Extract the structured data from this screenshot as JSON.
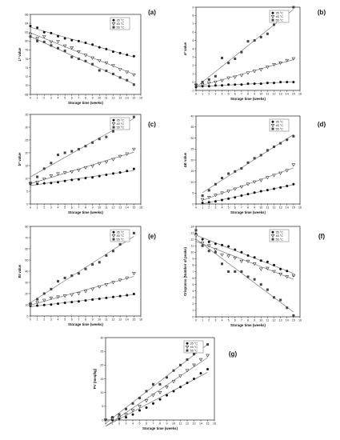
{
  "legend_labels": [
    "35 °C",
    "45 °C",
    "55 °C"
  ],
  "chart_data": [
    {
      "type": "scatter",
      "panel_label": "(a)",
      "xlabel": "Storage time (weeks)",
      "ylabel": "L* value",
      "xlim": [
        0,
        16
      ],
      "ylim": [
        68,
        86
      ],
      "xticks": [
        0,
        1,
        2,
        3,
        4,
        5,
        6,
        7,
        8,
        9,
        10,
        11,
        12,
        13,
        14,
        15,
        16
      ],
      "yticks": [
        68,
        70,
        72,
        74,
        76,
        78,
        80,
        82,
        84,
        86
      ],
      "x": [
        0,
        1,
        2,
        3,
        4,
        5,
        6,
        7,
        8,
        9,
        10,
        11,
        12,
        13,
        14,
        15
      ],
      "series": [
        {
          "name": "35 °C",
          "values": [
            83.4,
            83.0,
            82.0,
            81.8,
            81.1,
            80.6,
            80.2,
            80.0,
            79.6,
            79.2,
            78.6,
            78.2,
            77.6,
            77.3,
            76.9,
            76.6
          ]
        },
        {
          "name": "45 °C",
          "values": [
            81.5,
            80.6,
            81.0,
            79.8,
            79.9,
            78.9,
            78.5,
            77.6,
            76.8,
            76.2,
            75.6,
            75.1,
            74.5,
            73.6,
            73.0,
            72.4
          ]
        },
        {
          "name": "55 °C",
          "values": [
            81.0,
            80.0,
            79.8,
            79.0,
            78.4,
            77.8,
            76.4,
            76.0,
            75.5,
            74.8,
            73.4,
            73.3,
            72.6,
            71.8,
            71.2,
            70.2
          ]
        }
      ]
    },
    {
      "type": "scatter",
      "panel_label": "(b)",
      "xlabel": "Storage time (weeks)",
      "ylabel": "a* value",
      "xlim": [
        0,
        16
      ],
      "ylim": [
        -1,
        9
      ],
      "xticks": [
        0,
        1,
        2,
        3,
        4,
        5,
        6,
        7,
        8,
        9,
        10,
        11,
        12,
        13,
        14,
        15,
        16
      ],
      "yticks": [
        -1,
        0,
        1,
        2,
        3,
        4,
        5,
        6,
        7,
        8,
        9
      ],
      "x": [
        0,
        1,
        2,
        3,
        4,
        5,
        6,
        7,
        8,
        9,
        10,
        11,
        12,
        13,
        14,
        15
      ],
      "series": [
        {
          "name": "35 °C",
          "values": [
            -0.6,
            -0.5,
            -0.5,
            -0.4,
            -0.4,
            -0.3,
            -0.3,
            -0.3,
            -0.2,
            -0.2,
            -0.2,
            -0.1,
            -0.1,
            0.0,
            0.0,
            0.0
          ]
        },
        {
          "name": "45 °C",
          "values": [
            -0.4,
            -0.3,
            -0.1,
            0.0,
            0.2,
            0.5,
            0.6,
            0.8,
            1.1,
            1.3,
            1.5,
            1.8,
            2.1,
            2.3,
            2.6,
            2.8
          ]
        },
        {
          "name": "55 °C",
          "values": [
            -0.3,
            0.0,
            0.3,
            0.7,
            2.9,
            2.3,
            2.8,
            3.6,
            4.9,
            5.0,
            5.4,
            5.8,
            6.9,
            7.6,
            8.1,
            9.0
          ]
        }
      ]
    },
    {
      "type": "scatter",
      "panel_label": "(c)",
      "xlabel": "Storage time (weeks)",
      "ylabel": "b* value",
      "xlim": [
        0,
        16
      ],
      "ylim": [
        0,
        35
      ],
      "xticks": [
        0,
        1,
        2,
        3,
        4,
        5,
        6,
        7,
        8,
        9,
        10,
        11,
        12,
        13,
        14,
        15,
        16
      ],
      "yticks": [
        0,
        5,
        10,
        15,
        20,
        25,
        30,
        35
      ],
      "x": [
        0,
        1,
        2,
        3,
        4,
        5,
        6,
        7,
        8,
        9,
        10,
        11,
        12,
        13,
        14,
        15
      ],
      "series": [
        {
          "name": "35 °C",
          "values": [
            7.8,
            7.9,
            8.1,
            8.2,
            8.5,
            9.0,
            9.4,
            9.6,
            10.1,
            10.4,
            10.9,
            11.4,
            11.9,
            12.3,
            12.9,
            13.7
          ]
        },
        {
          "name": "45 °C",
          "values": [
            8.0,
            8.5,
            9.8,
            11.0,
            11.8,
            12.2,
            12.6,
            13.2,
            14.2,
            14.8,
            15.8,
            16.4,
            17.4,
            18.6,
            19.6,
            21.4
          ]
        },
        {
          "name": "55 °C",
          "values": [
            8.2,
            10.6,
            13.8,
            16.0,
            19.2,
            20.0,
            20.6,
            21.4,
            22.6,
            24.0,
            25.4,
            26.2,
            28.4,
            30.0,
            31.6,
            34.0
          ]
        }
      ]
    },
    {
      "type": "scatter",
      "panel_label": "(d)",
      "xlabel": "Storage time (weeks)",
      "ylabel": "ΔE value",
      "xlim": [
        0,
        16
      ],
      "ylim": [
        0,
        40
      ],
      "xticks": [
        0,
        1,
        2,
        3,
        4,
        5,
        6,
        7,
        8,
        9,
        10,
        11,
        12,
        13,
        14,
        15,
        16
      ],
      "yticks": [
        0,
        5,
        10,
        15,
        20,
        25,
        30,
        35,
        40
      ],
      "x": [
        1,
        2,
        3,
        4,
        5,
        6,
        7,
        8,
        9,
        10,
        11,
        12,
        13,
        14,
        15
      ],
      "series": [
        {
          "name": "35 °C",
          "values": [
            0.5,
            0.8,
            1.2,
            1.8,
            2.4,
            3.0,
            3.8,
            4.5,
            5.2,
            5.8,
            6.3,
            6.9,
            7.5,
            8.2,
            9.0
          ]
        },
        {
          "name": "45 °C",
          "values": [
            2.0,
            3.0,
            4.0,
            5.0,
            5.8,
            6.8,
            7.8,
            9.0,
            10.0,
            10.8,
            12.0,
            13.0,
            14.0,
            15.2,
            17.8
          ]
        },
        {
          "name": "55 °C",
          "values": [
            3.8,
            6.2,
            9.0,
            11.8,
            13.8,
            14.8,
            16.2,
            18.8,
            20.8,
            22.2,
            24.4,
            26.0,
            27.6,
            29.2,
            30.8
          ]
        }
      ]
    },
    {
      "type": "scatter",
      "panel_label": "(e)",
      "xlabel": "Storage time (weeks)",
      "ylabel": "BI value",
      "xlim": [
        0,
        16
      ],
      "ylim": [
        0,
        80
      ],
      "xticks": [
        0,
        1,
        2,
        3,
        4,
        5,
        6,
        7,
        8,
        9,
        10,
        11,
        12,
        13,
        14,
        15,
        16
      ],
      "yticks": [
        0,
        10,
        20,
        30,
        40,
        50,
        60,
        70,
        80
      ],
      "x": [
        0,
        1,
        2,
        3,
        4,
        5,
        6,
        7,
        8,
        9,
        10,
        11,
        12,
        13,
        14,
        15
      ],
      "series": [
        {
          "name": "35 °C",
          "values": [
            9.0,
            9.3,
            9.8,
            10.2,
            11.0,
            11.8,
            12.4,
            13.0,
            13.8,
            14.6,
            15.4,
            16.2,
            17.0,
            17.8,
            18.6,
            19.6
          ]
        },
        {
          "name": "45 °C",
          "values": [
            10.0,
            12.0,
            14.0,
            16.0,
            17.0,
            18.0,
            19.0,
            20.0,
            22.0,
            24.0,
            26.0,
            28.0,
            30.0,
            32.0,
            34.0,
            38.0
          ]
        },
        {
          "name": "55 °C",
          "values": [
            11.0,
            15.0,
            20.0,
            24.0,
            31.0,
            34.0,
            36.0,
            38.0,
            42.0,
            46.0,
            48.0,
            54.0,
            58.0,
            64.0,
            68.0,
            74.0
          ]
        }
      ]
    },
    {
      "type": "scatter",
      "panel_label": "(f)",
      "xlabel": "Storage time (weeks)",
      "ylabel": "Crispness (Number of peaks)",
      "xlim": [
        0,
        16
      ],
      "ylim": [
        0,
        14
      ],
      "xticks": [
        0,
        1,
        2,
        3,
        4,
        5,
        6,
        7,
        8,
        9,
        10,
        11,
        12,
        13,
        14,
        15,
        16
      ],
      "yticks": [
        0,
        1,
        2,
        3,
        4,
        5,
        6,
        7,
        8,
        9,
        10,
        11,
        12,
        13,
        14
      ],
      "x": [
        0,
        1,
        2,
        3,
        4,
        5,
        6,
        7,
        8,
        9,
        10,
        11,
        12,
        13,
        14,
        15
      ],
      "series": [
        {
          "name": "35 °C",
          "values": [
            12.8,
            12.0,
            11.6,
            11.3,
            11.1,
            10.9,
            10.4,
            10.0,
            9.5,
            9.2,
            8.7,
            8.5,
            8.0,
            7.4,
            7.1,
            6.4
          ]
        },
        {
          "name": "45 °C",
          "values": [
            12.6,
            11.4,
            11.0,
            10.4,
            9.6,
            9.4,
            9.1,
            8.6,
            8.6,
            8.2,
            7.4,
            7.5,
            7.0,
            6.6,
            6.2,
            6.4
          ]
        },
        {
          "name": "55 °C",
          "values": [
            13.4,
            11.0,
            10.2,
            10.0,
            8.2,
            7.0,
            7.0,
            7.0,
            6.2,
            5.8,
            5.0,
            4.2,
            3.0,
            2.6,
            1.4,
            0.2
          ]
        }
      ]
    },
    {
      "type": "scatter",
      "panel_label": "(g)",
      "xlabel": "Storage time (weeks)",
      "ylabel": "PV (meq/kg)",
      "xlim": [
        0,
        16
      ],
      "ylim": [
        0,
        30
      ],
      "xticks": [
        0,
        1,
        2,
        3,
        4,
        5,
        6,
        7,
        8,
        9,
        10,
        11,
        12,
        13,
        14,
        15,
        16
      ],
      "yticks": [
        0,
        5,
        10,
        15,
        20,
        25,
        30
      ],
      "x": [
        0,
        1,
        2,
        3,
        4,
        5,
        6,
        7,
        8,
        9,
        10,
        11,
        12,
        13,
        14,
        15
      ],
      "series": [
        {
          "name": "35 °C",
          "values": [
            0.0,
            0.0,
            0.5,
            1.0,
            2.0,
            3.5,
            4.5,
            6.0,
            7.5,
            9.0,
            10.5,
            12.0,
            13.5,
            15.0,
            17.0,
            18.5
          ]
        },
        {
          "name": "45 °C",
          "values": [
            0.0,
            0.5,
            1.0,
            2.0,
            3.5,
            5.0,
            7.0,
            9.0,
            10.0,
            12.0,
            14.0,
            16.0,
            18.0,
            20.0,
            22.0,
            23.5
          ]
        },
        {
          "name": "55 °C",
          "values": [
            0.0,
            1.0,
            2.0,
            4.0,
            6.0,
            8.0,
            10.5,
            13.0,
            13.0,
            15.5,
            18.0,
            20.0,
            22.0,
            24.0,
            26.0,
            27.5
          ]
        }
      ]
    }
  ]
}
